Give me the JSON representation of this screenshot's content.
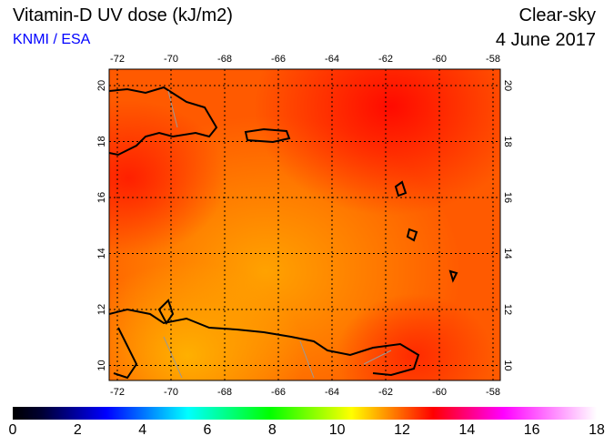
{
  "header": {
    "title": "Vitamin-D UV dose (kJ/m2)",
    "org": "KNMI / ESA",
    "condition": "Clear-sky",
    "date": "4 June 2017"
  },
  "map": {
    "lon_ticks": [
      "-72",
      "-70",
      "-68",
      "-66",
      "-64",
      "-62",
      "-60",
      "-58"
    ],
    "lat_ticks": [
      "20",
      "18",
      "16",
      "14",
      "12",
      "10"
    ]
  },
  "colorbar": {
    "labels": [
      "0",
      "2",
      "4",
      "6",
      "8",
      "10",
      "12",
      "14",
      "16",
      "18"
    ],
    "min": 0,
    "max": 18,
    "colors": {
      "low": "#000000",
      "mid": "#ffff00",
      "high": "#ff0000",
      "top": "#ffffff"
    }
  }
}
